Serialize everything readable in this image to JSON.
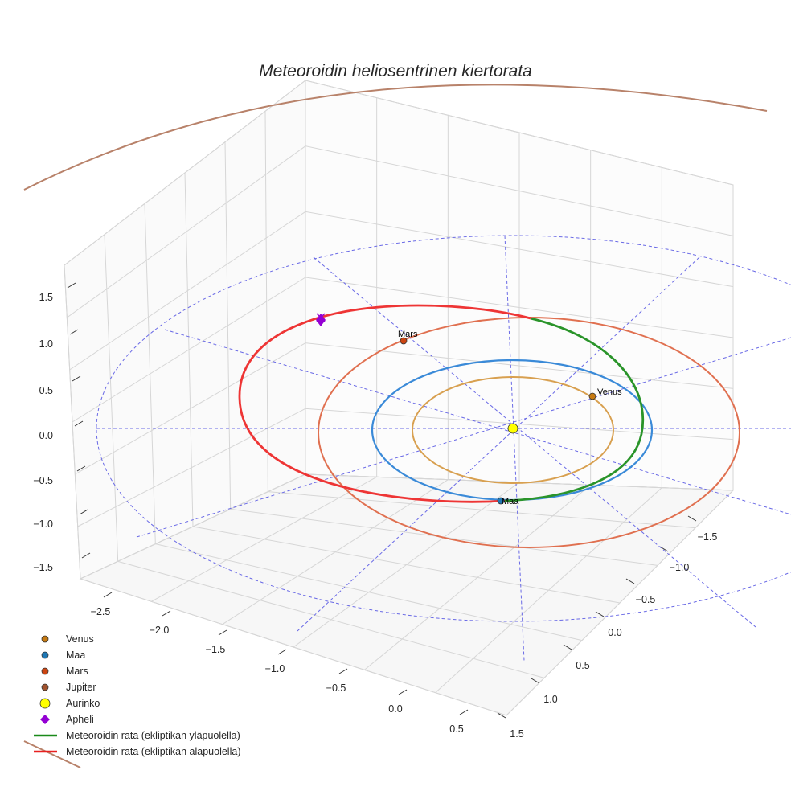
{
  "chart_data": {
    "type": "3d-line",
    "title": "Meteoroidin heliosentrinen kiertorata",
    "x_ticks": [
      "−2.5",
      "−2.0",
      "−1.5",
      "−1.0",
      "−0.5",
      "0.0",
      "0.5"
    ],
    "y_ticks": [
      "1.5",
      "1.0",
      "0.5",
      "0.0",
      "−0.5",
      "−1.0",
      "−1.5"
    ],
    "z_ticks": [
      "1.5",
      "1.0",
      "0.5",
      "0.0",
      "−0.5",
      "−1.0",
      "−1.5"
    ],
    "xlim": [
      -2.7,
      0.6
    ],
    "ylim": [
      -1.8,
      1.6
    ],
    "zlim": [
      -1.7,
      1.7
    ],
    "orbit_radii_au": {
      "Venus": 0.72,
      "Maa": 1.0,
      "Mars": 1.52,
      "Jupiter": 5.2
    },
    "planet_labels": [
      "Mars",
      "Venus",
      "Maa"
    ],
    "legend": [
      {
        "label": "Venus",
        "marker": "circle",
        "color": "#c67a12"
      },
      {
        "label": "Maa",
        "marker": "circle",
        "color": "#1f77b4"
      },
      {
        "label": "Mars",
        "marker": "circle",
        "color": "#cc4411"
      },
      {
        "label": "Jupiter",
        "marker": "circle",
        "color": "#a0522d"
      },
      {
        "label": "Aurinko",
        "marker": "circle",
        "color": "#ffff00"
      },
      {
        "label": "Apheli",
        "marker": "diamond",
        "color": "#9400d3"
      },
      {
        "label": "Meteoroidin rata (ekliptikan yläpuolella)",
        "marker": "line",
        "color": "#1a8a1a"
      },
      {
        "label": "Meteoroidin rata (ekliptikan alapuolella)",
        "marker": "line",
        "color": "#e82020"
      }
    ],
    "legend_position": "lower-left"
  }
}
